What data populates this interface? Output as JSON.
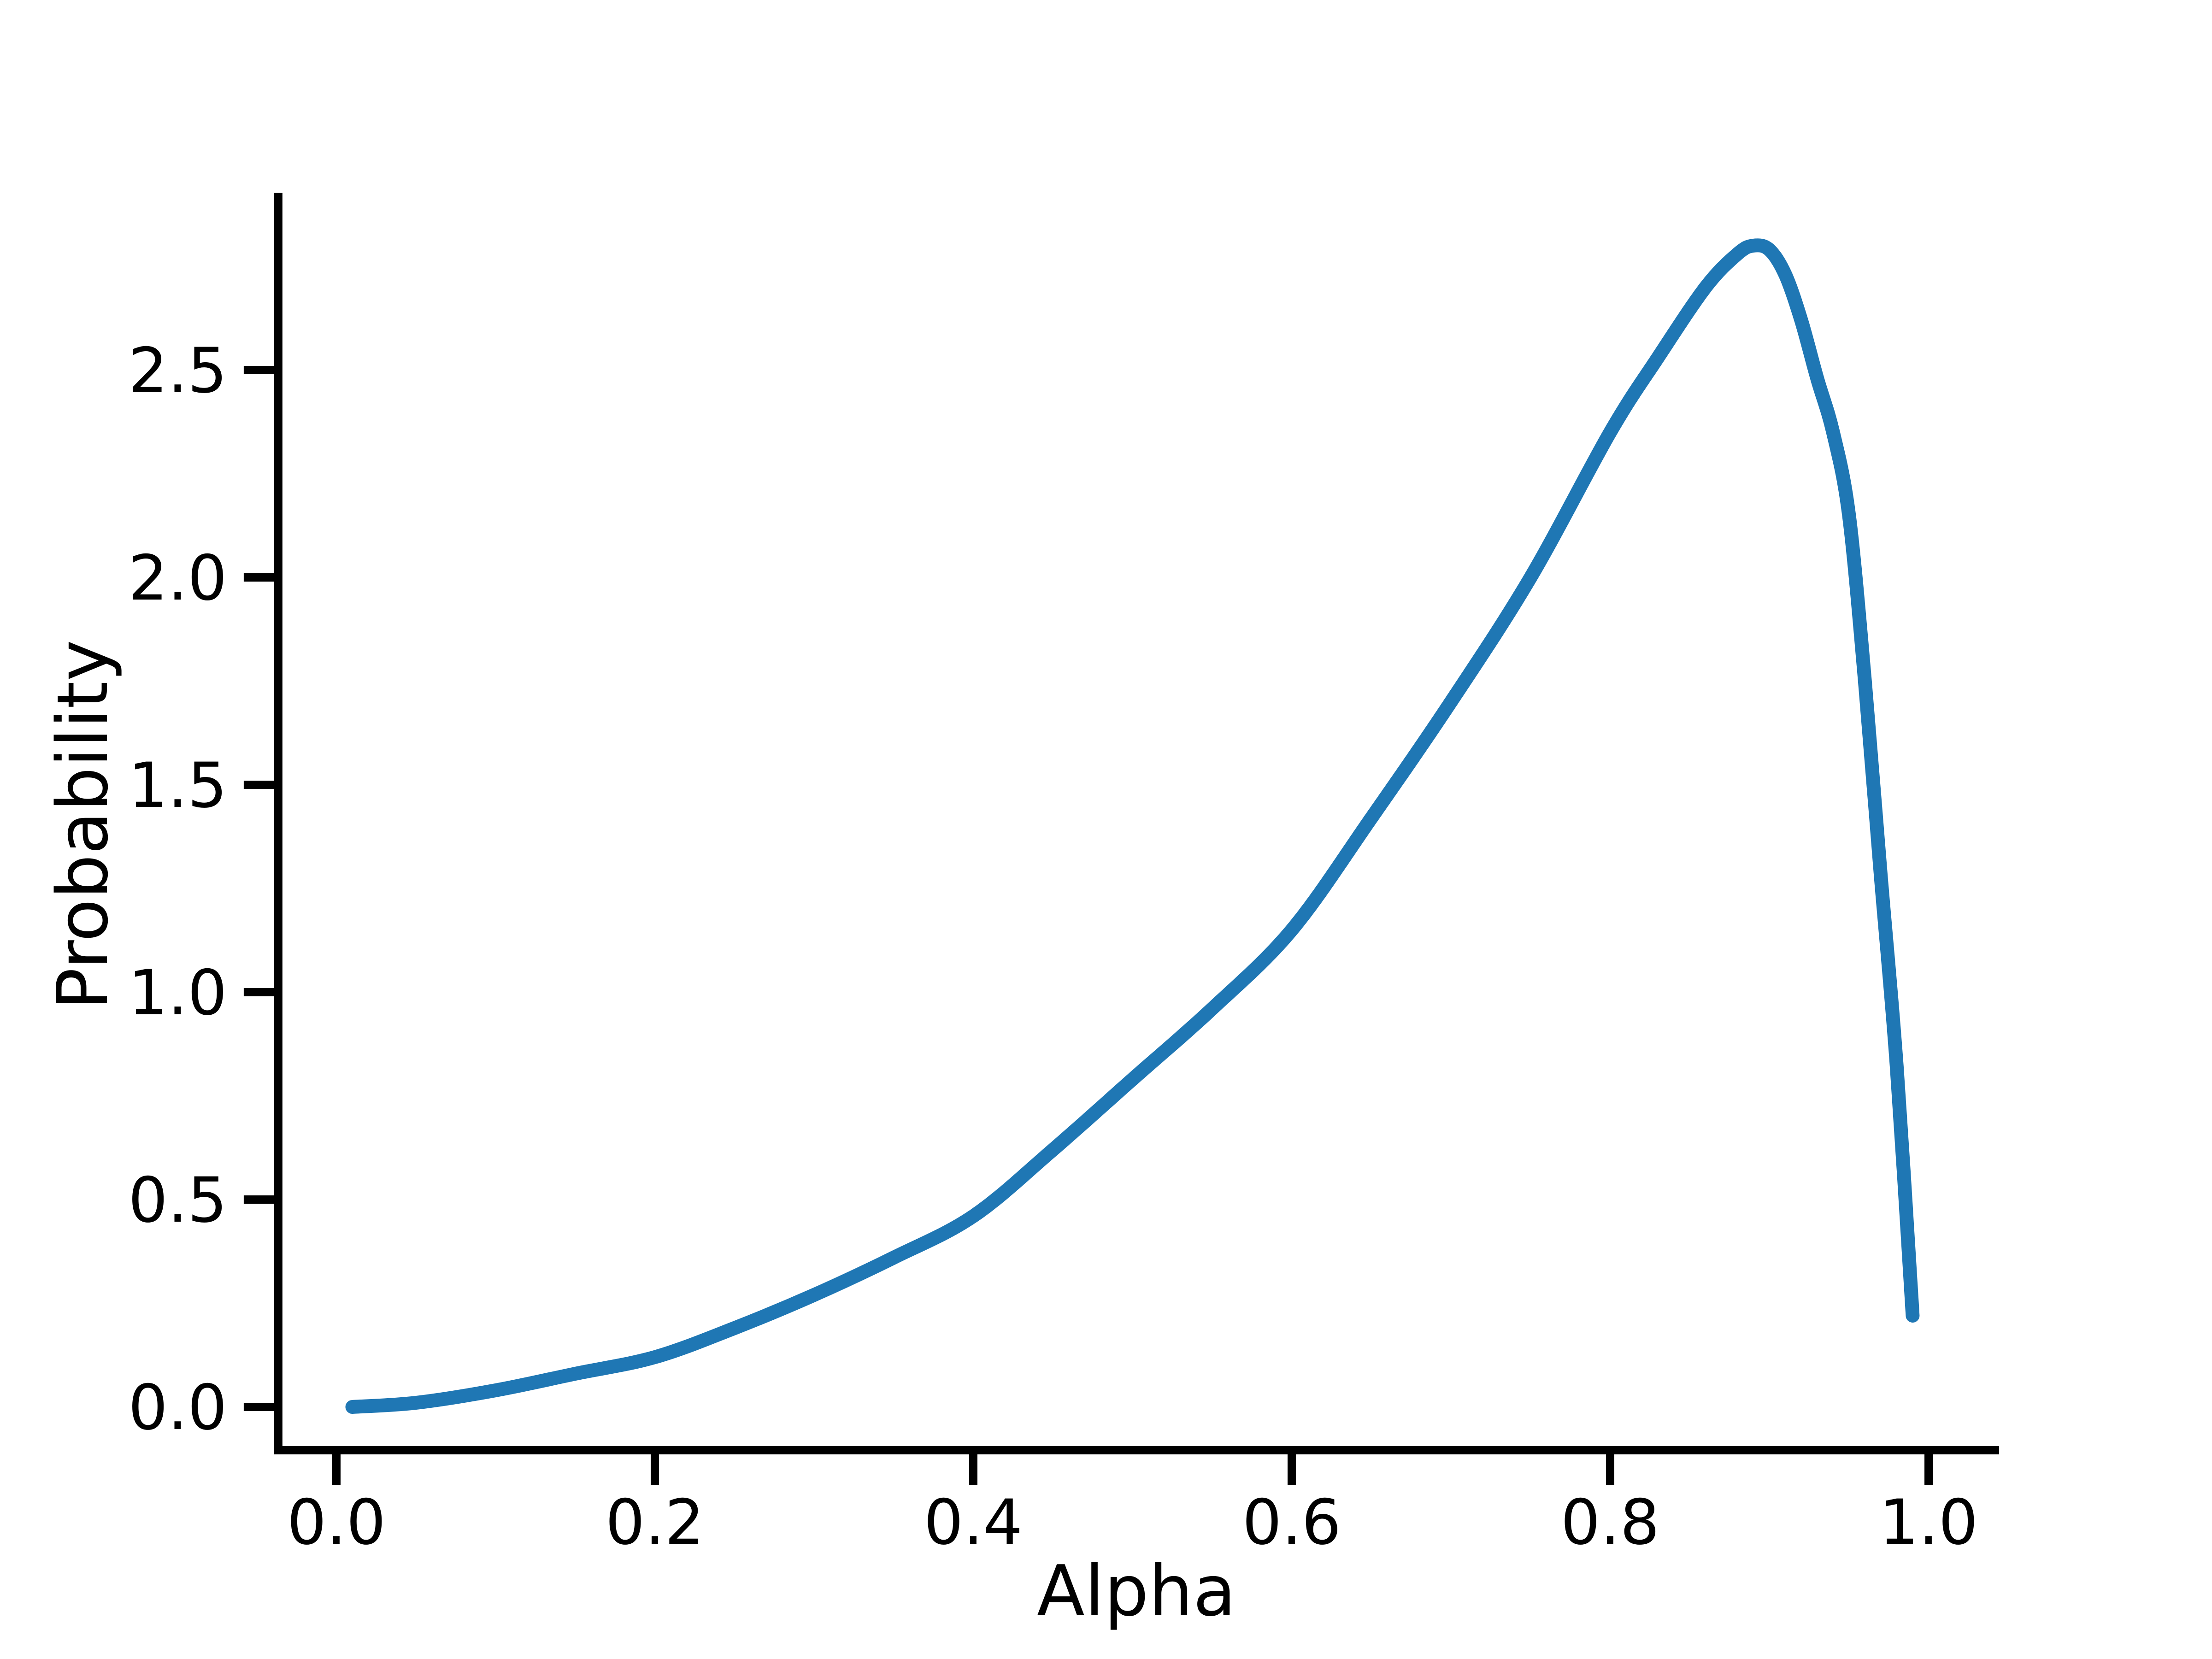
{
  "figure": {
    "background_color": "#ffffff",
    "axis_color": "#000000"
  },
  "chart_data": {
    "type": "line",
    "title": "",
    "xlabel": "Alpha",
    "ylabel": "Probability",
    "grid": false,
    "legend": null,
    "xlim": [
      -0.0365,
      1.0417
    ],
    "ylim": [
      -0.1045,
      2.917
    ],
    "x_ticks": {
      "values": [
        0.0,
        0.2,
        0.4,
        0.6,
        0.8,
        1.0
      ],
      "labels": [
        "0.0",
        "0.2",
        "0.4",
        "0.6",
        "0.8",
        "1.0"
      ]
    },
    "y_ticks": {
      "values": [
        0.0,
        0.5,
        1.0,
        1.5,
        2.0,
        2.5
      ],
      "labels": [
        "0.0",
        "0.5",
        "1.0",
        "1.5",
        "2.0",
        "2.5"
      ]
    },
    "series": [
      {
        "name": "probability-vs-alpha",
        "color": "#1f77b4",
        "linewidth": 30,
        "x": [
          0.01,
          0.05,
          0.1,
          0.15,
          0.2,
          0.25,
          0.3,
          0.35,
          0.4,
          0.45,
          0.5,
          0.55,
          0.6,
          0.65,
          0.7,
          0.75,
          0.8,
          0.83,
          0.86,
          0.88,
          0.89,
          0.9,
          0.91,
          0.92,
          0.93,
          0.94,
          0.95,
          0.96,
          0.97,
          0.98,
          0.99
        ],
        "y": [
          0.0,
          0.01,
          0.04,
          0.08,
          0.12,
          0.19,
          0.27,
          0.36,
          0.46,
          0.62,
          0.79,
          0.96,
          1.15,
          1.42,
          1.7,
          2.0,
          2.35,
          2.53,
          2.7,
          2.78,
          2.8,
          2.79,
          2.73,
          2.62,
          2.48,
          2.35,
          2.15,
          1.75,
          1.28,
          0.82,
          0.22
        ]
      }
    ]
  }
}
